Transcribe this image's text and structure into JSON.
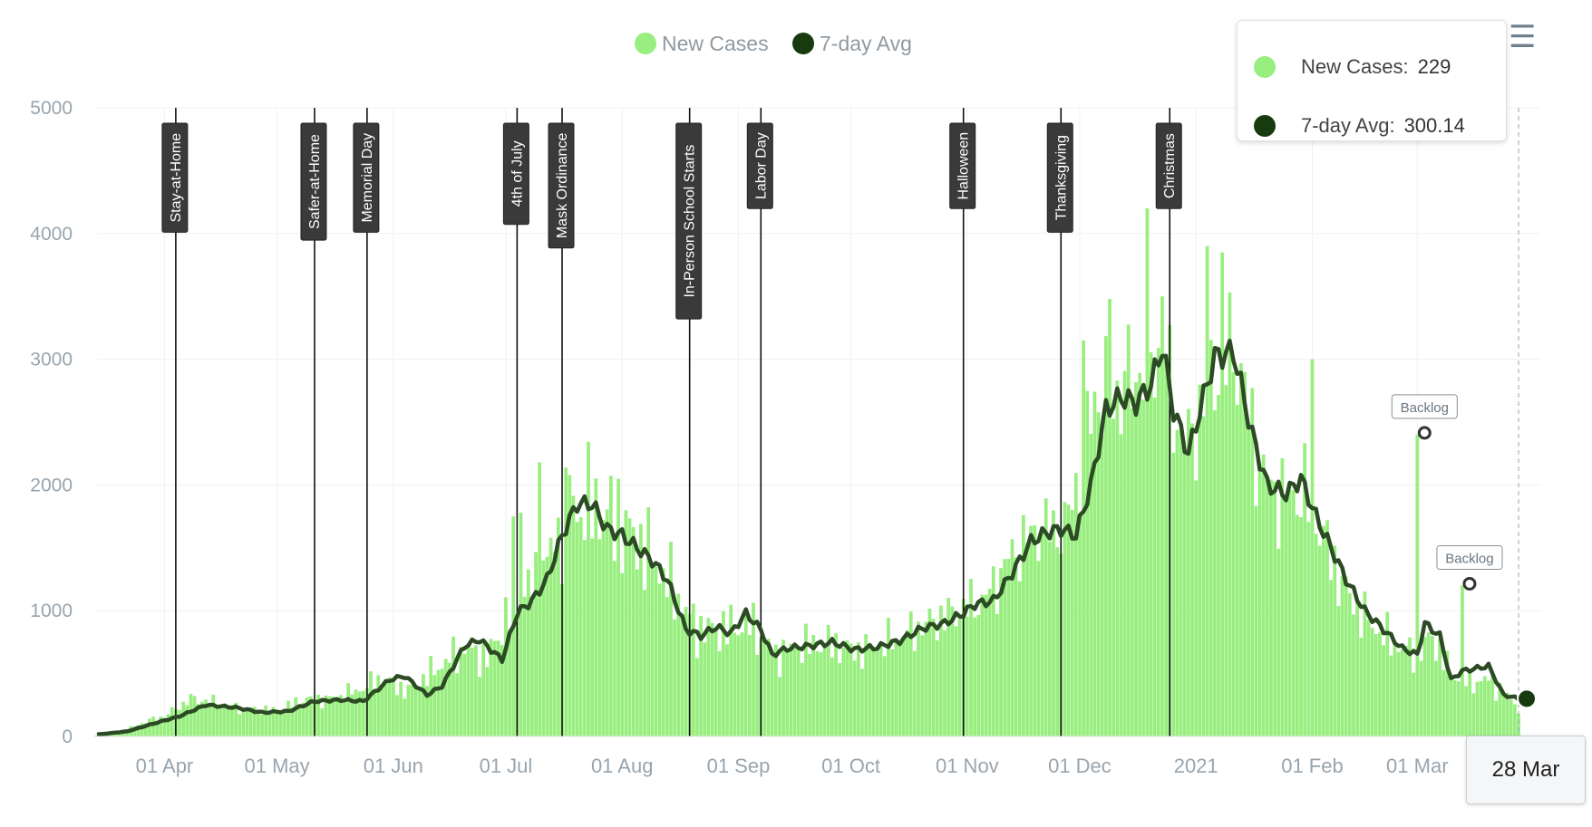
{
  "colors": {
    "bars": "#98ee7e",
    "line": "#2c4a24",
    "avg_marker": "#173a0f",
    "gridline": "#f1f1f1",
    "axis_text": "#98a4ad"
  },
  "icons": {
    "home": "home-icon",
    "menu": "hamburger-menu-icon"
  },
  "tooltip": {
    "series": [
      {
        "label": "New Cases:",
        "value": "229"
      },
      {
        "label": "7-day Avg:",
        "value": "300.14"
      }
    ],
    "x_label": "28 Mar"
  },
  "chart_data": {
    "type": "bar",
    "x_start": "2020-03-14",
    "y_axis": {
      "min": 0,
      "max": 5000,
      "ticks": [
        "0",
        "1000",
        "2000",
        "3000",
        "4000",
        "5000"
      ]
    },
    "x_axis": {
      "ticks": [
        {
          "date": "2020-04-01",
          "label": "01 Apr"
        },
        {
          "date": "2020-05-01",
          "label": "01 May"
        },
        {
          "date": "2020-06-01",
          "label": "01 Jun"
        },
        {
          "date": "2020-07-01",
          "label": "01 Jul"
        },
        {
          "date": "2020-08-01",
          "label": "01 Aug"
        },
        {
          "date": "2020-09-01",
          "label": "01 Sep"
        },
        {
          "date": "2020-10-01",
          "label": "01 Oct"
        },
        {
          "date": "2020-11-01",
          "label": "01 Nov"
        },
        {
          "date": "2020-12-01",
          "label": "01 Dec"
        },
        {
          "date": "2021-01-01",
          "label": "2021"
        },
        {
          "date": "2021-02-01",
          "label": "01 Feb"
        },
        {
          "date": "2021-03-01",
          "label": "01 Mar"
        }
      ]
    },
    "grid": true,
    "legend": {
      "position": "top-center",
      "entries": [
        "New Cases",
        "7-day Avg"
      ]
    },
    "series_names": [
      "New Cases",
      "7-day Avg"
    ],
    "events": [
      {
        "date": "2020-04-04",
        "label": "Stay-at-Home"
      },
      {
        "date": "2020-05-11",
        "label": "Safer-at-Home"
      },
      {
        "date": "2020-05-25",
        "label": "Memorial Day"
      },
      {
        "date": "2020-07-04",
        "label": "4th of July"
      },
      {
        "date": "2020-07-16",
        "label": "Mask Ordinance"
      },
      {
        "date": "2020-08-19",
        "label": "In-Person School Starts"
      },
      {
        "date": "2020-09-07",
        "label": "Labor Day"
      },
      {
        "date": "2020-10-31",
        "label": "Halloween"
      },
      {
        "date": "2020-11-26",
        "label": "Thanksgiving"
      },
      {
        "date": "2020-12-25",
        "label": "Christmas"
      }
    ],
    "annotations": [
      {
        "date": "2021-03-01",
        "value": 2400,
        "label": "Backlog"
      },
      {
        "date": "2021-03-13",
        "value": 1200,
        "label": "Backlog"
      }
    ],
    "new_cases_keypoints": [
      [
        "2020-03-14",
        10
      ],
      [
        "2020-03-20",
        30
      ],
      [
        "2020-03-28",
        130
      ],
      [
        "2020-04-01",
        160
      ],
      [
        "2020-04-08",
        300
      ],
      [
        "2020-04-15",
        270
      ],
      [
        "2020-04-22",
        220
      ],
      [
        "2020-05-01",
        210
      ],
      [
        "2020-05-08",
        290
      ],
      [
        "2020-05-15",
        300
      ],
      [
        "2020-05-22",
        360
      ],
      [
        "2020-05-29",
        460
      ],
      [
        "2020-06-05",
        360
      ],
      [
        "2020-06-12",
        530
      ],
      [
        "2020-06-20",
        700
      ],
      [
        "2020-06-26",
        620
      ],
      [
        "2020-07-03",
        1050
      ],
      [
        "2020-07-10",
        1250
      ],
      [
        "2020-07-17",
        1750
      ],
      [
        "2020-07-24",
        1850
      ],
      [
        "2020-07-31",
        1700
      ],
      [
        "2020-08-07",
        1500
      ],
      [
        "2020-08-14",
        1200
      ],
      [
        "2020-08-21",
        850
      ],
      [
        "2020-08-28",
        850
      ],
      [
        "2020-09-04",
        900
      ],
      [
        "2020-09-11",
        650
      ],
      [
        "2020-09-18",
        720
      ],
      [
        "2020-09-25",
        740
      ],
      [
        "2020-10-02",
        680
      ],
      [
        "2020-10-09",
        720
      ],
      [
        "2020-10-16",
        820
      ],
      [
        "2020-10-23",
        920
      ],
      [
        "2020-10-30",
        1000
      ],
      [
        "2020-11-06",
        1100
      ],
      [
        "2020-11-13",
        1450
      ],
      [
        "2020-11-20",
        1650
      ],
      [
        "2020-11-27",
        1650
      ],
      [
        "2020-12-01",
        2100
      ],
      [
        "2020-12-05",
        2700
      ],
      [
        "2020-12-12",
        2750
      ],
      [
        "2020-12-19",
        3000
      ],
      [
        "2020-12-23",
        3050
      ],
      [
        "2020-12-27",
        2500
      ],
      [
        "2020-12-30",
        2300
      ],
      [
        "2021-01-03",
        2700
      ],
      [
        "2021-01-07",
        3000
      ],
      [
        "2021-01-12",
        3050
      ],
      [
        "2021-01-16",
        2400
      ],
      [
        "2021-01-20",
        2000
      ],
      [
        "2021-01-25",
        1900
      ],
      [
        "2021-01-29",
        1950
      ],
      [
        "2021-02-01",
        1850
      ],
      [
        "2021-02-05",
        1500
      ],
      [
        "2021-02-10",
        1150
      ],
      [
        "2021-02-15",
        950
      ],
      [
        "2021-02-20",
        800
      ],
      [
        "2021-02-25",
        700
      ],
      [
        "2021-03-01",
        650
      ],
      [
        "2021-03-05",
        800
      ],
      [
        "2021-03-10",
        500
      ],
      [
        "2021-03-15",
        430
      ],
      [
        "2021-03-20",
        450
      ],
      [
        "2021-03-24",
        350
      ],
      [
        "2021-03-28",
        229
      ]
    ],
    "new_cases_spikes": [
      {
        "date": "2020-07-03",
        "value": 1750
      },
      {
        "date": "2020-07-05",
        "value": 1780
      },
      {
        "date": "2020-07-10",
        "value": 2180
      },
      {
        "date": "2020-07-18",
        "value": 2080
      },
      {
        "date": "2020-07-31",
        "value": 2050
      },
      {
        "date": "2020-12-02",
        "value": 3150
      },
      {
        "date": "2020-12-09",
        "value": 3480
      },
      {
        "date": "2020-12-19",
        "value": 4200
      },
      {
        "date": "2020-12-23",
        "value": 3500
      },
      {
        "date": "2021-01-04",
        "value": 3900
      },
      {
        "date": "2021-01-08",
        "value": 3850
      },
      {
        "date": "2021-02-01",
        "value": 3000
      },
      {
        "date": "2021-03-01",
        "value": 2400
      },
      {
        "date": "2021-03-13",
        "value": 1200
      }
    ],
    "avg_keypoints": [
      [
        "2020-03-14",
        15
      ],
      [
        "2020-03-22",
        40
      ],
      [
        "2020-03-30",
        110
      ],
      [
        "2020-04-05",
        160
      ],
      [
        "2020-04-12",
        250
      ],
      [
        "2020-04-20",
        230
      ],
      [
        "2020-04-27",
        190
      ],
      [
        "2020-05-04",
        200
      ],
      [
        "2020-05-11",
        280
      ],
      [
        "2020-05-18",
        290
      ],
      [
        "2020-05-24",
        280
      ],
      [
        "2020-05-31",
        450
      ],
      [
        "2020-06-04",
        480
      ],
      [
        "2020-06-10",
        330
      ],
      [
        "2020-06-14",
        400
      ],
      [
        "2020-06-20",
        720
      ],
      [
        "2020-06-24",
        770
      ],
      [
        "2020-06-30",
        610
      ],
      [
        "2020-07-04",
        980
      ],
      [
        "2020-07-08",
        1080
      ],
      [
        "2020-07-12",
        1250
      ],
      [
        "2020-07-16",
        1600
      ],
      [
        "2020-07-20",
        1850
      ],
      [
        "2020-07-24",
        1850
      ],
      [
        "2020-07-28",
        1650
      ],
      [
        "2020-08-01",
        1600
      ],
      [
        "2020-08-05",
        1500
      ],
      [
        "2020-08-09",
        1400
      ],
      [
        "2020-08-13",
        1250
      ],
      [
        "2020-08-18",
        850
      ],
      [
        "2020-08-22",
        800
      ],
      [
        "2020-08-26",
        870
      ],
      [
        "2020-08-30",
        820
      ],
      [
        "2020-09-03",
        980
      ],
      [
        "2020-09-07",
        850
      ],
      [
        "2020-09-10",
        650
      ],
      [
        "2020-09-14",
        700
      ],
      [
        "2020-09-20",
        720
      ],
      [
        "2020-09-26",
        750
      ],
      [
        "2020-10-02",
        690
      ],
      [
        "2020-10-08",
        710
      ],
      [
        "2020-10-14",
        760
      ],
      [
        "2020-10-20",
        860
      ],
      [
        "2020-10-26",
        900
      ],
      [
        "2020-10-31",
        980
      ],
      [
        "2020-11-03",
        1050
      ],
      [
        "2020-11-08",
        1080
      ],
      [
        "2020-11-13",
        1300
      ],
      [
        "2020-11-18",
        1550
      ],
      [
        "2020-11-22",
        1620
      ],
      [
        "2020-11-26",
        1650
      ],
      [
        "2020-11-30",
        1600
      ],
      [
        "2020-12-04",
        2000
      ],
      [
        "2020-12-08",
        2600
      ],
      [
        "2020-12-12",
        2700
      ],
      [
        "2020-12-16",
        2650
      ],
      [
        "2020-12-20",
        2800
      ],
      [
        "2020-12-23",
        3100
      ],
      [
        "2020-12-26",
        2600
      ],
      [
        "2020-12-30",
        2250
      ],
      [
        "2021-01-03",
        2700
      ],
      [
        "2021-01-06",
        3020
      ],
      [
        "2021-01-11",
        3060
      ],
      [
        "2021-01-16",
        2400
      ],
      [
        "2021-01-20",
        2000
      ],
      [
        "2021-01-25",
        1930
      ],
      [
        "2021-01-29",
        2050
      ],
      [
        "2021-02-02",
        1750
      ],
      [
        "2021-02-06",
        1500
      ],
      [
        "2021-02-10",
        1250
      ],
      [
        "2021-02-15",
        1000
      ],
      [
        "2021-02-20",
        850
      ],
      [
        "2021-02-25",
        700
      ],
      [
        "2021-03-01",
        650
      ],
      [
        "2021-03-03",
        900
      ],
      [
        "2021-03-07",
        800
      ],
      [
        "2021-03-10",
        450
      ],
      [
        "2021-03-13",
        520
      ],
      [
        "2021-03-20",
        560
      ],
      [
        "2021-03-24",
        330
      ],
      [
        "2021-03-28",
        300.14
      ]
    ]
  }
}
